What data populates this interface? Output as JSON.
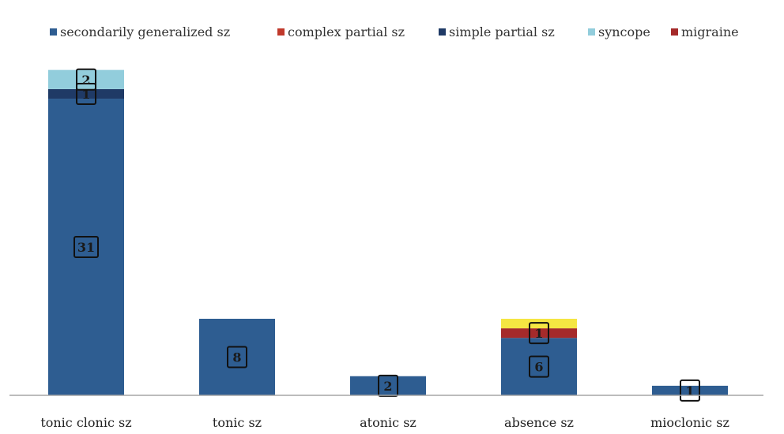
{
  "chart_data": {
    "type": "bar",
    "stacked": true,
    "categories": [
      "tonic clonic sz",
      "tonic sz",
      "atonic sz",
      "absence sz",
      "mioclonic sz"
    ],
    "series": [
      {
        "name": "secondarily generalized sz",
        "color": "#2e5d91",
        "values": [
          31,
          8,
          2,
          6,
          1
        ]
      },
      {
        "name": "complex partial sz",
        "color": "#c0392b",
        "values": [
          0,
          0,
          0,
          0,
          0
        ]
      },
      {
        "name": "simple partial sz",
        "color": "#1f3a66",
        "values": [
          1,
          0,
          0,
          0,
          0
        ]
      },
      {
        "name": "syncope",
        "color": "#92cddc",
        "values": [
          2,
          0,
          0,
          0,
          0
        ]
      },
      {
        "name": "migraine",
        "color": "#a52a2a",
        "values": [
          0,
          0,
          0,
          1,
          0
        ]
      },
      {
        "name": "",
        "color": "#f5e642",
        "values": [
          0,
          0,
          0,
          1,
          0
        ]
      }
    ],
    "ylim": [
      0,
      34.3
    ],
    "grid": false,
    "legend_position": "top"
  }
}
